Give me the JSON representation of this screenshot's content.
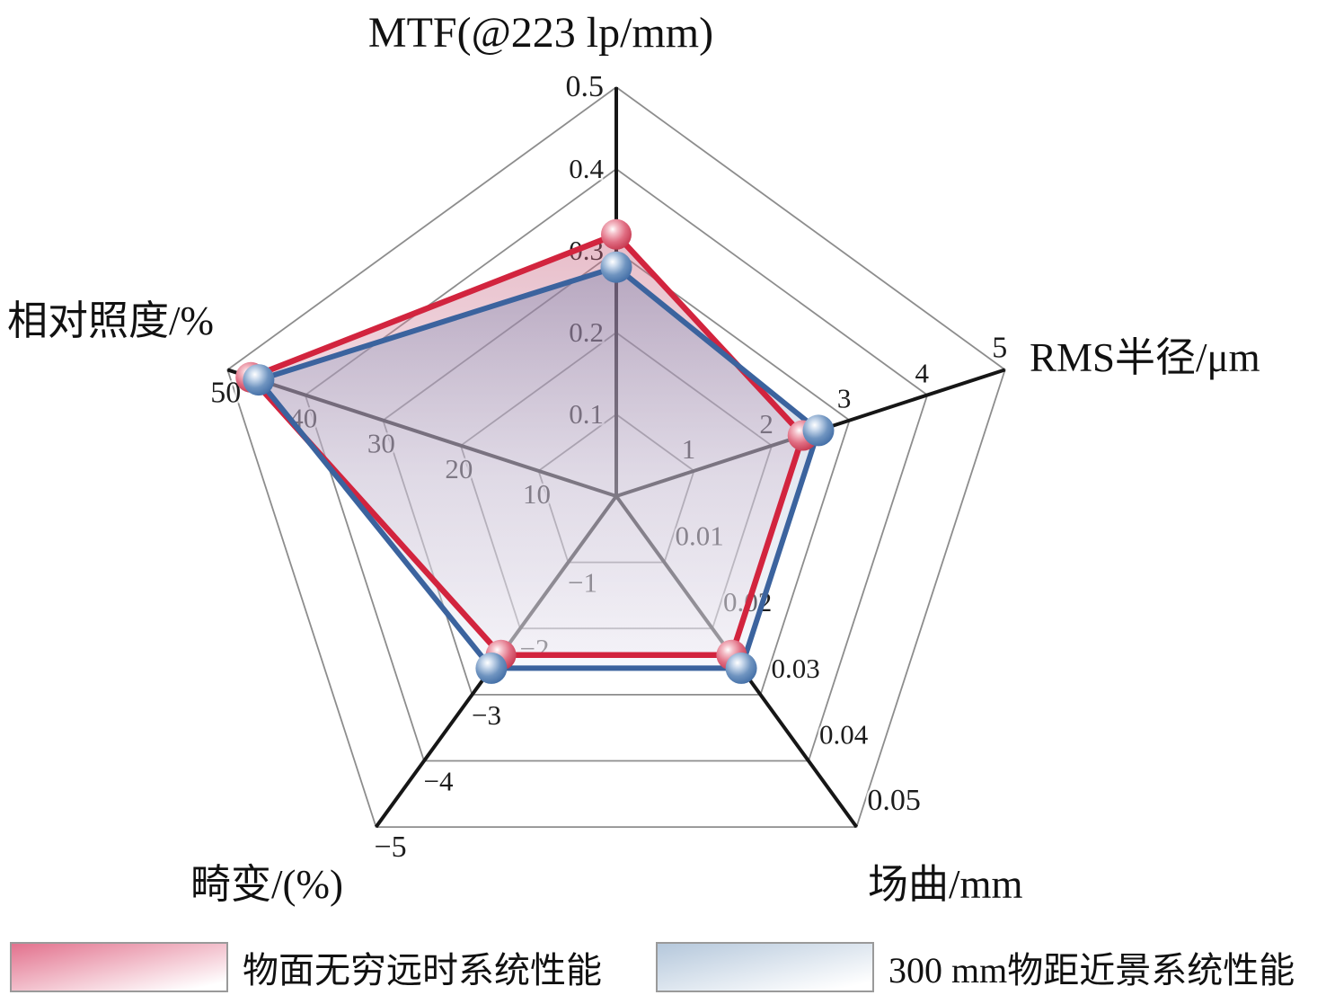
{
  "chart_data": {
    "type": "radar",
    "shape": "pentagon",
    "grid": "on",
    "rings_per_axis": 5,
    "legend_position": "bottom",
    "colors": {
      "red_line": "#d2243e",
      "blue_line": "#3b639e",
      "grid_gray": "#8d8d8d",
      "axis_black": "#161616",
      "overlap_fill_top": "#a89cb4"
    },
    "axes": [
      {
        "label": "MTF(@223 lp/mm)",
        "max": 0.5,
        "ticks": [
          "0.1",
          "0.2",
          "0.3",
          "0.4",
          "0.5"
        ]
      },
      {
        "label": "RMS半径/μm",
        "max": 5,
        "ticks": [
          "1",
          "2",
          "3",
          "4",
          "5"
        ]
      },
      {
        "label": "场曲/mm",
        "max": 0.05,
        "ticks": [
          "0.01",
          "0.02",
          "0.03",
          "0.04",
          "0.05"
        ]
      },
      {
        "label": "畸变/(%)",
        "max": 5,
        "ticks": [
          "−1",
          "−2",
          "−3",
          "−4",
          "−5"
        ]
      },
      {
        "label": "相对照度/%",
        "max": 50,
        "ticks": [
          "10",
          "20",
          "30",
          "40",
          "50"
        ]
      }
    ],
    "series": [
      {
        "name": "物面无穷远时系统性能",
        "color": "#d2243e",
        "marker": "sphere-red",
        "values": [
          0.32,
          2.4,
          0.024,
          -2.4,
          47
        ]
      },
      {
        "name": "300 mm物距近景系统性能",
        "color": "#3b639e",
        "marker": "sphere-blue",
        "values": [
          0.28,
          2.6,
          0.026,
          -2.6,
          46
        ]
      }
    ]
  }
}
